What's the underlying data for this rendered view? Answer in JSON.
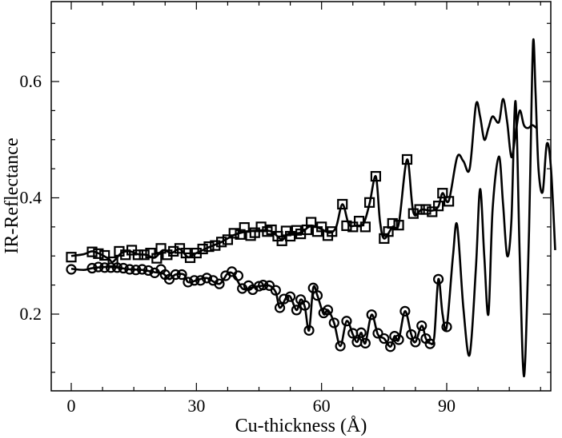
{
  "chart_data": {
    "type": "line",
    "title": "",
    "xlabel": "Cu-thickness (Å)",
    "ylabel": "IR-Reflectance",
    "xlim": [
      -5,
      115
    ],
    "ylim": [
      0.07,
      0.75
    ],
    "x_ticks": [
      0,
      30,
      60,
      90
    ],
    "y_ticks": [
      0.2,
      0.4,
      0.6
    ],
    "x_tick_labels": [
      "0",
      "30",
      "60",
      "90"
    ],
    "y_tick_labels": [
      "0.2",
      "0.4",
      "0.6"
    ],
    "grid": false,
    "legend": "none",
    "series": [
      {
        "marker": "square",
        "markers": [
          [
            0,
            0.298
          ],
          [
            5,
            0.307
          ],
          [
            6.5,
            0.304
          ],
          [
            8,
            0.301
          ],
          [
            10,
            0.29
          ],
          [
            11.5,
            0.308
          ],
          [
            13,
            0.302
          ],
          [
            14.5,
            0.31
          ],
          [
            16,
            0.302
          ],
          [
            17.5,
            0.302
          ],
          [
            19,
            0.305
          ],
          [
            20.5,
            0.296
          ],
          [
            21.5,
            0.313
          ],
          [
            23,
            0.302
          ],
          [
            24.5,
            0.308
          ],
          [
            26,
            0.313
          ],
          [
            27.5,
            0.305
          ],
          [
            28.5,
            0.297
          ],
          [
            30,
            0.305
          ],
          [
            31.5,
            0.312
          ],
          [
            33,
            0.316
          ],
          [
            34.5,
            0.318
          ],
          [
            36,
            0.324
          ],
          [
            37.5,
            0.328
          ],
          [
            39,
            0.339
          ],
          [
            40.5,
            0.337
          ],
          [
            41.5,
            0.349
          ],
          [
            43,
            0.335
          ],
          [
            44,
            0.34
          ],
          [
            45.5,
            0.35
          ],
          [
            47,
            0.342
          ],
          [
            48,
            0.345
          ],
          [
            49.5,
            0.334
          ],
          [
            50.5,
            0.326
          ],
          [
            51.5,
            0.343
          ],
          [
            52.5,
            0.334
          ],
          [
            54,
            0.344
          ],
          [
            55,
            0.338
          ],
          [
            56.5,
            0.345
          ],
          [
            57.5,
            0.358
          ],
          [
            59,
            0.342
          ],
          [
            60,
            0.35
          ],
          [
            61.5,
            0.335
          ],
          [
            62.5,
            0.342
          ],
          [
            65,
            0.389
          ],
          [
            66,
            0.352
          ],
          [
            67.5,
            0.35
          ],
          [
            69,
            0.36
          ],
          [
            70.5,
            0.35
          ],
          [
            71.5,
            0.392
          ],
          [
            73,
            0.437
          ],
          [
            75,
            0.33
          ],
          [
            76,
            0.342
          ],
          [
            77,
            0.356
          ],
          [
            78.5,
            0.353
          ],
          [
            80.5,
            0.466
          ],
          [
            82,
            0.373
          ],
          [
            83.5,
            0.38
          ],
          [
            85,
            0.38
          ],
          [
            86.5,
            0.376
          ],
          [
            88,
            0.386
          ],
          [
            89,
            0.408
          ],
          [
            90.5,
            0.394
          ]
        ],
        "curve": [
          [
            0,
            0.3
          ],
          [
            3,
            0.303
          ],
          [
            5,
            0.308
          ],
          [
            7,
            0.303
          ],
          [
            9,
            0.295
          ],
          [
            10,
            0.29
          ],
          [
            12,
            0.305
          ],
          [
            14,
            0.308
          ],
          [
            16,
            0.303
          ],
          [
            18,
            0.302
          ],
          [
            20,
            0.297
          ],
          [
            22,
            0.31
          ],
          [
            24,
            0.305
          ],
          [
            26,
            0.312
          ],
          [
            28,
            0.298
          ],
          [
            30,
            0.305
          ],
          [
            33,
            0.315
          ],
          [
            36,
            0.324
          ],
          [
            39,
            0.336
          ],
          [
            42,
            0.342
          ],
          [
            45,
            0.344
          ],
          [
            48,
            0.342
          ],
          [
            50.5,
            0.328
          ],
          [
            52,
            0.338
          ],
          [
            55,
            0.34
          ],
          [
            57.5,
            0.352
          ],
          [
            60,
            0.346
          ],
          [
            62,
            0.34
          ],
          [
            63.5,
            0.35
          ],
          [
            65,
            0.389
          ],
          [
            66.5,
            0.355
          ],
          [
            68,
            0.352
          ],
          [
            70,
            0.355
          ],
          [
            71.5,
            0.39
          ],
          [
            73,
            0.437
          ],
          [
            74,
            0.36
          ],
          [
            75,
            0.33
          ],
          [
            77,
            0.35
          ],
          [
            78.5,
            0.355
          ],
          [
            80.5,
            0.466
          ],
          [
            82,
            0.375
          ],
          [
            84,
            0.38
          ],
          [
            86.5,
            0.378
          ],
          [
            88,
            0.385
          ],
          [
            89,
            0.408
          ],
          [
            90.5,
            0.395
          ],
          [
            92.5,
            0.47
          ],
          [
            94,
            0.463
          ],
          [
            95.5,
            0.45
          ],
          [
            97,
            0.56
          ],
          [
            98,
            0.54
          ],
          [
            99,
            0.5
          ],
          [
            100,
            0.52
          ],
          [
            101,
            0.54
          ],
          [
            102.5,
            0.53
          ],
          [
            103.5,
            0.57
          ],
          [
            104.5,
            0.53
          ],
          [
            105.5,
            0.47
          ],
          [
            106.5,
            0.51
          ],
          [
            107.5,
            0.55
          ],
          [
            108.5,
            0.525
          ],
          [
            109.5,
            0.52
          ],
          [
            110.5,
            0.525
          ],
          [
            111.5,
            0.52
          ]
        ]
      },
      {
        "marker": "circle",
        "markers": [
          [
            0,
            0.277
          ],
          [
            5,
            0.279
          ],
          [
            6.5,
            0.281
          ],
          [
            8,
            0.28
          ],
          [
            9.5,
            0.28
          ],
          [
            11,
            0.28
          ],
          [
            12.5,
            0.279
          ],
          [
            14,
            0.277
          ],
          [
            15.5,
            0.276
          ],
          [
            17,
            0.277
          ],
          [
            18.5,
            0.275
          ],
          [
            20,
            0.271
          ],
          [
            21.5,
            0.277
          ],
          [
            22.5,
            0.268
          ],
          [
            23.5,
            0.26
          ],
          [
            25,
            0.268
          ],
          [
            26.5,
            0.268
          ],
          [
            28,
            0.255
          ],
          [
            29.5,
            0.258
          ],
          [
            31,
            0.258
          ],
          [
            32.5,
            0.262
          ],
          [
            34,
            0.258
          ],
          [
            35.5,
            0.252
          ],
          [
            37,
            0.266
          ],
          [
            38.5,
            0.273
          ],
          [
            40,
            0.266
          ],
          [
            41,
            0.244
          ],
          [
            42.5,
            0.249
          ],
          [
            43.5,
            0.242
          ],
          [
            45,
            0.248
          ],
          [
            46,
            0.25
          ],
          [
            47.5,
            0.249
          ],
          [
            49,
            0.241
          ],
          [
            50,
            0.211
          ],
          [
            51,
            0.226
          ],
          [
            52.5,
            0.23
          ],
          [
            54,
            0.207
          ],
          [
            55,
            0.225
          ],
          [
            56,
            0.215
          ],
          [
            57,
            0.172
          ],
          [
            58,
            0.245
          ],
          [
            59,
            0.232
          ],
          [
            60.5,
            0.202
          ],
          [
            61.5,
            0.207
          ],
          [
            63,
            0.185
          ],
          [
            64.5,
            0.145
          ],
          [
            66,
            0.188
          ],
          [
            67.5,
            0.167
          ],
          [
            68.5,
            0.152
          ],
          [
            69.5,
            0.168
          ],
          [
            70.5,
            0.15
          ],
          [
            72,
            0.199
          ],
          [
            73.5,
            0.167
          ],
          [
            75,
            0.158
          ],
          [
            76.5,
            0.144
          ],
          [
            77.5,
            0.162
          ],
          [
            78.5,
            0.156
          ],
          [
            80,
            0.205
          ],
          [
            81.5,
            0.165
          ],
          [
            82.5,
            0.152
          ],
          [
            84,
            0.18
          ],
          [
            85,
            0.158
          ],
          [
            86,
            0.149
          ],
          [
            88,
            0.26
          ],
          [
            90,
            0.178
          ]
        ],
        "curve": [
          [
            0,
            0.278
          ],
          [
            3,
            0.276
          ],
          [
            5,
            0.279
          ],
          [
            8,
            0.281
          ],
          [
            11,
            0.28
          ],
          [
            14,
            0.277
          ],
          [
            17,
            0.276
          ],
          [
            20,
            0.272
          ],
          [
            22,
            0.27
          ],
          [
            23.5,
            0.26
          ],
          [
            25,
            0.268
          ],
          [
            27,
            0.268
          ],
          [
            28,
            0.255
          ],
          [
            30,
            0.258
          ],
          [
            32.5,
            0.262
          ],
          [
            35.5,
            0.252
          ],
          [
            37.5,
            0.27
          ],
          [
            39,
            0.268
          ],
          [
            41,
            0.244
          ],
          [
            43,
            0.245
          ],
          [
            45,
            0.248
          ],
          [
            47.5,
            0.249
          ],
          [
            49,
            0.238
          ],
          [
            50,
            0.211
          ],
          [
            51.5,
            0.228
          ],
          [
            52.5,
            0.23
          ],
          [
            54,
            0.207
          ],
          [
            55,
            0.225
          ],
          [
            56,
            0.212
          ],
          [
            57,
            0.172
          ],
          [
            58,
            0.245
          ],
          [
            59,
            0.232
          ],
          [
            60.5,
            0.2
          ],
          [
            61.5,
            0.207
          ],
          [
            63,
            0.185
          ],
          [
            64.5,
            0.145
          ],
          [
            66,
            0.188
          ],
          [
            67.5,
            0.165
          ],
          [
            68.5,
            0.152
          ],
          [
            69.5,
            0.168
          ],
          [
            70.5,
            0.15
          ],
          [
            72,
            0.199
          ],
          [
            73.5,
            0.165
          ],
          [
            75,
            0.158
          ],
          [
            76.5,
            0.144
          ],
          [
            77.5,
            0.162
          ],
          [
            78.5,
            0.156
          ],
          [
            80,
            0.205
          ],
          [
            81.5,
            0.165
          ],
          [
            82.5,
            0.152
          ],
          [
            84,
            0.18
          ],
          [
            85,
            0.158
          ],
          [
            86,
            0.15
          ],
          [
            87,
            0.16
          ],
          [
            88,
            0.26
          ],
          [
            89,
            0.2
          ],
          [
            90,
            0.178
          ],
          [
            91.5,
            0.3
          ],
          [
            92.5,
            0.353
          ],
          [
            94,
            0.21
          ],
          [
            95.5,
            0.13
          ],
          [
            97,
            0.28
          ],
          [
            98,
            0.415
          ],
          [
            99,
            0.3
          ],
          [
            100,
            0.2
          ],
          [
            101,
            0.38
          ],
          [
            102.5,
            0.471
          ],
          [
            103.5,
            0.39
          ],
          [
            104.5,
            0.3
          ],
          [
            105.5,
            0.36
          ],
          [
            106.5,
            0.566
          ],
          [
            107.5,
            0.3
          ],
          [
            108.5,
            0.093
          ],
          [
            109.5,
            0.28
          ],
          [
            110,
            0.435
          ],
          [
            110.7,
            0.668
          ],
          [
            111.3,
            0.58
          ],
          [
            112,
            0.45
          ],
          [
            113,
            0.41
          ],
          [
            114,
            0.493
          ],
          [
            115,
            0.45
          ],
          [
            116,
            0.31
          ]
        ]
      }
    ]
  }
}
